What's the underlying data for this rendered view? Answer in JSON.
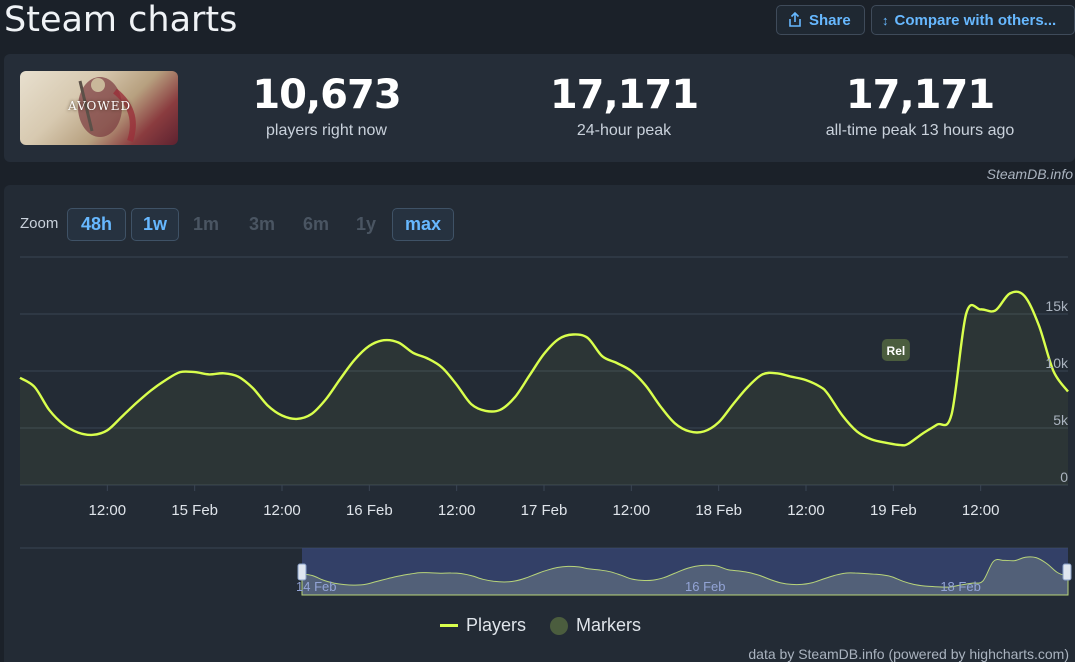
{
  "header": {
    "title": "Steam charts",
    "share_label": "Share",
    "compare_label": "Compare with others..."
  },
  "game": {
    "cover_text": "AVOWED"
  },
  "stats": {
    "current_value": "10,673",
    "current_label": "players right now",
    "peak24_value": "17,171",
    "peak24_label": "24-hour peak",
    "alltime_value": "17,171",
    "alltime_label": "all-time peak 13 hours ago"
  },
  "credit_top": "SteamDB.info",
  "zoom": {
    "label": "Zoom",
    "options": [
      {
        "label": "48h",
        "enabled": true
      },
      {
        "label": "1w",
        "enabled": true
      },
      {
        "label": "1m",
        "enabled": false
      },
      {
        "label": "3m",
        "enabled": false
      },
      {
        "label": "6m",
        "enabled": false
      },
      {
        "label": "1y",
        "enabled": false
      },
      {
        "label": "max",
        "enabled": true
      }
    ]
  },
  "chart_data": {
    "type": "area",
    "series": [
      {
        "name": "Players",
        "color": "#d9ff4d",
        "x_hours": [
          0,
          2,
          4,
          6,
          8,
          10,
          12,
          14,
          16,
          18,
          20,
          22,
          24,
          26,
          28,
          30,
          32,
          34,
          36,
          38,
          40,
          42,
          44,
          46,
          48,
          50,
          52,
          54,
          56,
          58,
          60,
          62,
          64,
          66,
          68,
          70,
          72,
          74,
          76,
          78,
          80,
          82,
          84,
          86,
          88,
          90,
          92,
          94,
          96,
          98,
          100,
          102,
          104,
          106,
          108,
          110,
          111,
          113,
          115,
          117,
          119,
          121,
          122,
          124,
          126,
          128,
          130,
          132,
          134,
          136,
          138,
          140,
          142,
          144
        ],
        "values": [
          9400,
          8600,
          6600,
          5300,
          4600,
          4400,
          4800,
          6000,
          7200,
          8300,
          9200,
          9900,
          9900,
          9700,
          9800,
          9500,
          8500,
          7000,
          6100,
          5800,
          6200,
          7500,
          9300,
          11000,
          12200,
          12700,
          12500,
          11600,
          11100,
          10300,
          8800,
          7100,
          6500,
          6600,
          7700,
          9600,
          11500,
          12800,
          13200,
          12900,
          11300,
          10700,
          10000,
          8700,
          6900,
          5400,
          4700,
          4700,
          5500,
          7100,
          8600,
          9700,
          9800,
          9500,
          9200,
          8600,
          8000,
          6100,
          4700,
          4000,
          3700,
          3500,
          3600,
          4500,
          5300,
          6200,
          15000,
          15400,
          15300,
          16800,
          16600,
          14000,
          10000,
          8200
        ]
      }
    ],
    "x_tick_labels": [
      "12:00",
      "15 Feb",
      "12:00",
      "16 Feb",
      "12:00",
      "17 Feb",
      "12:00",
      "18 Feb",
      "12:00",
      "19 Feb",
      "12:00"
    ],
    "y_ticks": [
      0,
      5000,
      10000,
      15000
    ],
    "y_tick_labels": [
      "0",
      "5k",
      "10k",
      "15k"
    ],
    "ylim": [
      0,
      20000
    ],
    "grid": true,
    "markers": [
      {
        "label": "Rel",
        "x_hour": 122
      }
    ],
    "navigator_labels": [
      "14 Feb",
      "16 Feb",
      "18 Feb"
    ],
    "legend": [
      {
        "label": "Players",
        "color": "#d9ff4d"
      },
      {
        "label": "Markers",
        "color": "#4b5d3e"
      }
    ]
  },
  "credit_bottom": "data by SteamDB.info (powered by highcharts.com)"
}
